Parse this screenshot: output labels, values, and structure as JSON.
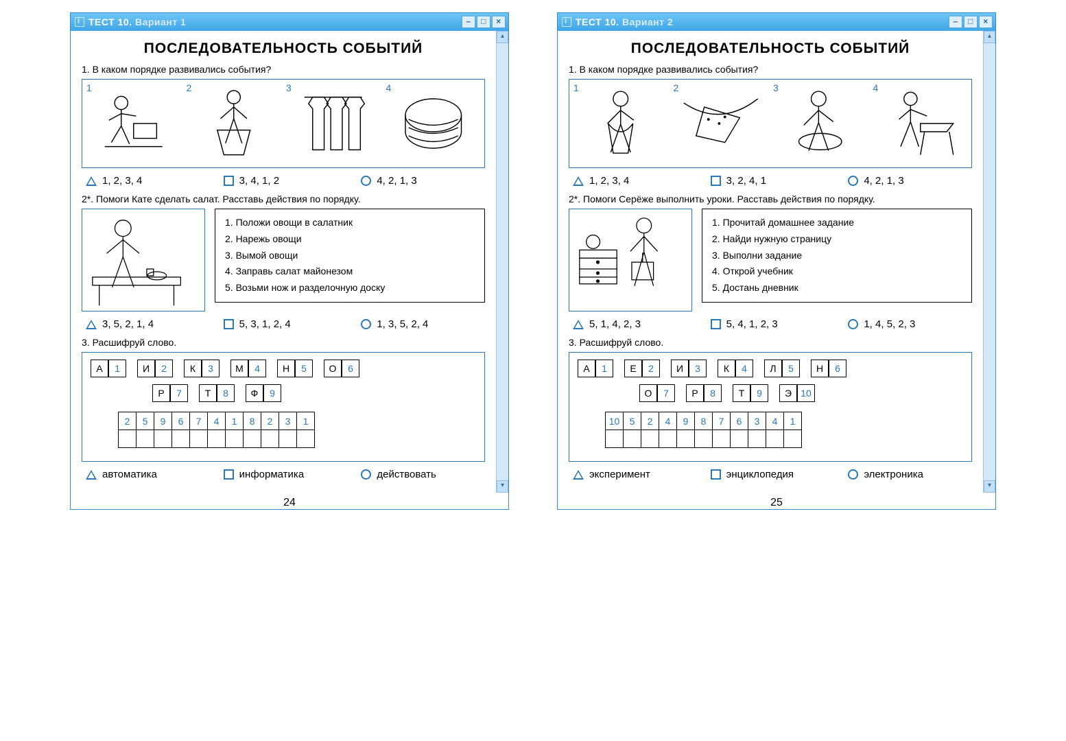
{
  "colors": {
    "frame": "#2a78b5",
    "titlebar_grad": [
      "#6fc6f5",
      "#3fa6e6"
    ],
    "text": "#000000",
    "accent_text": "#2a78b5"
  },
  "left": {
    "titlebar": {
      "bold": "ТЕСТ 10.",
      "rest": " Вариант 1"
    },
    "page_title": "ПОСЛЕДОВАТЕЛЬНОСТЬ  СОБЫТИЙ",
    "q1": {
      "num": "1.",
      "text": "В каком порядке развивались события?",
      "images": [
        "1",
        "2",
        "3",
        "4"
      ],
      "options": [
        {
          "mark": "tri",
          "text": "1, 2, 3, 4"
        },
        {
          "mark": "sq",
          "text": "3, 4, 1, 2"
        },
        {
          "mark": "circ",
          "text": "4, 2, 1, 3"
        }
      ]
    },
    "q2": {
      "num": "2*.",
      "text": "Помоги Кате сделать салат. Расставь действия по порядку.",
      "steps": [
        "1. Положи овощи в салатник",
        "2. Нарежь овощи",
        "3. Вымой овощи",
        "4. Заправь салат майонезом",
        "5. Возьми нож и разделочную доску"
      ],
      "options": [
        {
          "mark": "tri",
          "text": "3, 5, 2, 1, 4"
        },
        {
          "mark": "sq",
          "text": "5, 3, 1, 2, 4"
        },
        {
          "mark": "circ",
          "text": "1, 3, 5, 2, 4"
        }
      ]
    },
    "q3": {
      "num": "3.",
      "text": "Расшифруй слово.",
      "cipher_row1": [
        [
          "А",
          "1"
        ],
        [
          "И",
          "2"
        ],
        [
          "К",
          "3"
        ],
        [
          "М",
          "4"
        ],
        [
          "Н",
          "5"
        ],
        [
          "О",
          "6"
        ]
      ],
      "cipher_row2": [
        [
          "Р",
          "7"
        ],
        [
          "Т",
          "8"
        ],
        [
          "Ф",
          "9"
        ]
      ],
      "answer_code": [
        "2",
        "5",
        "9",
        "6",
        "7",
        "4",
        "1",
        "8",
        "2",
        "3",
        "1"
      ],
      "options": [
        {
          "mark": "tri",
          "text": "автоматика"
        },
        {
          "mark": "sq",
          "text": "информатика"
        },
        {
          "mark": "circ",
          "text": "действовать"
        }
      ]
    },
    "pagenum": "24"
  },
  "right": {
    "titlebar": {
      "bold": "ТЕСТ 10.",
      "rest": " Вариант 2"
    },
    "page_title": "ПОСЛЕДОВАТЕЛЬНОСТЬ  СОБЫТИЙ",
    "q1": {
      "num": "1.",
      "text": "В каком порядке развивались события?",
      "images": [
        "1",
        "2",
        "3",
        "4"
      ],
      "options": [
        {
          "mark": "tri",
          "text": "1, 2, 3, 4"
        },
        {
          "mark": "sq",
          "text": "3, 2, 4, 1"
        },
        {
          "mark": "circ",
          "text": "4, 2, 1, 3"
        }
      ]
    },
    "q2": {
      "num": "2*.",
      "text": "Помоги Серёже выполнить уроки. Расставь действия по порядку.",
      "steps": [
        "1. Прочитай домашнее задание",
        "2. Найди нужную страницу",
        "3. Выполни задание",
        "4. Открой учебник",
        "5. Достань дневник"
      ],
      "options": [
        {
          "mark": "tri",
          "text": "5, 1, 4, 2, 3"
        },
        {
          "mark": "sq",
          "text": "5, 4, 1, 2, 3"
        },
        {
          "mark": "circ",
          "text": "1, 4, 5, 2, 3"
        }
      ]
    },
    "q3": {
      "num": "3.",
      "text": "Расшифруй слово.",
      "cipher_row1": [
        [
          "А",
          "1"
        ],
        [
          "Е",
          "2"
        ],
        [
          "И",
          "3"
        ],
        [
          "К",
          "4"
        ],
        [
          "Л",
          "5"
        ],
        [
          "Н",
          "6"
        ]
      ],
      "cipher_row2": [
        [
          "О",
          "7"
        ],
        [
          "Р",
          "8"
        ],
        [
          "Т",
          "9"
        ],
        [
          "Э",
          "10"
        ]
      ],
      "answer_code": [
        "10",
        "5",
        "2",
        "4",
        "9",
        "8",
        "7",
        "6",
        "3",
        "4",
        "1"
      ],
      "options": [
        {
          "mark": "tri",
          "text": "эксперимент"
        },
        {
          "mark": "sq",
          "text": "энциклопедия"
        },
        {
          "mark": "circ",
          "text": "электроника"
        }
      ]
    },
    "pagenum": "25"
  }
}
